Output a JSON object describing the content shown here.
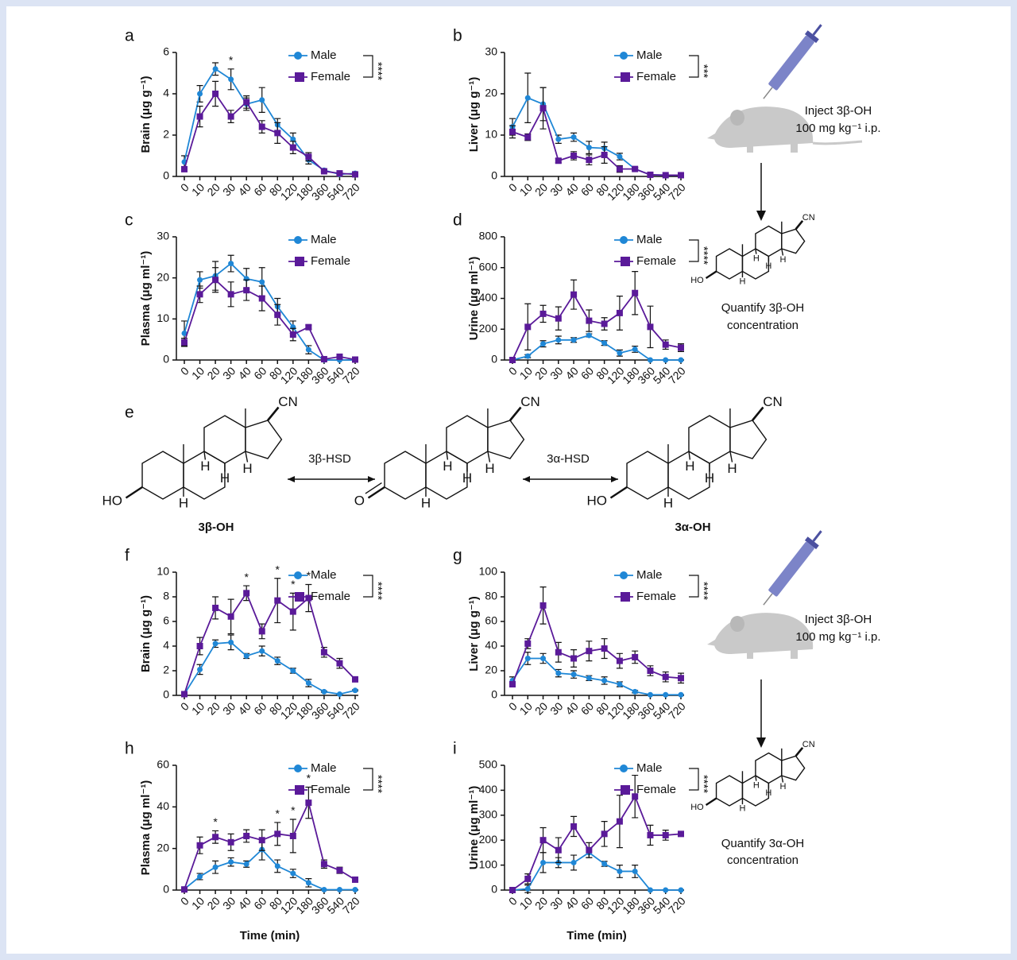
{
  "chart_data": [
    {
      "type": "line",
      "label": "a",
      "ylabel": "Brain (μg g⁻¹)",
      "categories": [
        "0",
        "10",
        "20",
        "30",
        "40",
        "60",
        "80",
        "120",
        "180",
        "360",
        "540",
        "720"
      ],
      "ylim": [
        0,
        6
      ],
      "yticks": [
        0,
        2,
        4,
        6
      ],
      "legend": "upper right",
      "significance": "****",
      "annotations": [
        {
          "x": "30",
          "text": "*"
        }
      ],
      "series": [
        {
          "name": "Male",
          "color": "#1f87d6",
          "marker": "circle",
          "values": [
            0.7,
            4.0,
            5.2,
            4.7,
            3.5,
            3.7,
            2.5,
            1.8,
            0.8,
            0.3,
            0.1,
            0.15
          ],
          "errors": [
            0.3,
            0.4,
            0.3,
            0.5,
            0.3,
            0.6,
            0.3,
            0.3,
            0.2,
            0.05,
            0.05,
            0.05
          ]
        },
        {
          "name": "Female",
          "color": "#5a1a99",
          "marker": "square",
          "values": [
            0.35,
            2.9,
            4.0,
            2.9,
            3.6,
            2.4,
            2.1,
            1.4,
            0.95,
            0.25,
            0.15,
            0.1
          ],
          "errors": [
            0.1,
            0.5,
            0.6,
            0.3,
            0.3,
            0.3,
            0.5,
            0.3,
            0.2,
            0.05,
            0.05,
            0.05
          ]
        }
      ]
    },
    {
      "type": "line",
      "label": "b",
      "ylabel": "Liver (μg g⁻¹)",
      "categories": [
        "0",
        "10",
        "20",
        "30",
        "40",
        "60",
        "80",
        "120",
        "180",
        "360",
        "540",
        "720"
      ],
      "ylim": [
        0,
        30
      ],
      "yticks": [
        0,
        10,
        20,
        30
      ],
      "legend": "upper right",
      "significance": "***",
      "annotations": [],
      "series": [
        {
          "name": "Male",
          "color": "#1f87d6",
          "marker": "circle",
          "values": [
            12,
            19,
            17.5,
            9,
            9.5,
            7,
            6.8,
            4.8,
            1.8,
            0.4,
            0.3,
            0.3
          ],
          "errors": [
            2,
            6,
            4,
            1,
            1,
            1.5,
            1.5,
            0.8,
            0.3,
            0.1,
            0.1,
            0.1
          ]
        },
        {
          "name": "Female",
          "color": "#5a1a99",
          "marker": "square",
          "values": [
            10.8,
            9.5,
            16.5,
            3.8,
            5,
            4,
            5.2,
            1.8,
            1.8,
            0.4,
            0.3,
            0.3
          ],
          "errors": [
            1.5,
            0.8,
            5,
            0.5,
            1,
            1.2,
            2,
            0.8,
            0.3,
            0.1,
            0.1,
            0.1
          ]
        }
      ]
    },
    {
      "type": "line",
      "label": "c",
      "ylabel": "Plasma (μg ml⁻¹)",
      "categories": [
        "0",
        "10",
        "20",
        "30",
        "40",
        "60",
        "80",
        "120",
        "180",
        "360",
        "540",
        "720"
      ],
      "ylim": [
        0,
        30
      ],
      "yticks": [
        0,
        10,
        20,
        30
      ],
      "legend": "upper right",
      "annotations": [],
      "series": [
        {
          "name": "Male",
          "color": "#1f87d6",
          "marker": "circle",
          "values": [
            6.5,
            19.5,
            20.5,
            23.5,
            19.8,
            19,
            13,
            8,
            2.5,
            0,
            0,
            0
          ],
          "errors": [
            3,
            2,
            3.5,
            2,
            2.5,
            3.5,
            2,
            1.5,
            1,
            0,
            0,
            0
          ]
        },
        {
          "name": "Female",
          "color": "#5a1a99",
          "marker": "square",
          "values": [
            4.3,
            16,
            19.5,
            16,
            17,
            15,
            11,
            6.2,
            8,
            0.2,
            0.8,
            0.1
          ],
          "errors": [
            1,
            2,
            3,
            3,
            2.5,
            3,
            2.5,
            1.5,
            0.5,
            0,
            0,
            0
          ]
        }
      ]
    },
    {
      "type": "line",
      "label": "d",
      "ylabel": "Urine (μg ml⁻¹)",
      "categories": [
        "0",
        "10",
        "20",
        "30",
        "40",
        "60",
        "80",
        "120",
        "180",
        "360",
        "540",
        "720"
      ],
      "ylim": [
        0,
        800
      ],
      "yticks": [
        0,
        200,
        400,
        600,
        800
      ],
      "legend": "upper right",
      "significance": "****",
      "annotations": [],
      "series": [
        {
          "name": "Male",
          "color": "#1f87d6",
          "marker": "circle",
          "values": [
            0,
            25,
            105,
            130,
            130,
            160,
            110,
            45,
            70,
            0,
            0,
            0
          ],
          "errors": [
            0,
            10,
            20,
            25,
            15,
            10,
            15,
            20,
            20,
            0,
            0,
            0
          ]
        },
        {
          "name": "Female",
          "color": "#5a1a99",
          "marker": "square",
          "values": [
            0,
            215,
            300,
            270,
            425,
            255,
            235,
            305,
            435,
            215,
            100,
            80
          ],
          "errors": [
            0,
            150,
            55,
            75,
            95,
            70,
            40,
            110,
            140,
            135,
            30,
            25
          ]
        }
      ]
    },
    {
      "type": "line",
      "label": "f",
      "ylabel": "Brain (μg g⁻¹)",
      "categories": [
        "0",
        "10",
        "20",
        "30",
        "40",
        "60",
        "80",
        "120",
        "180",
        "360",
        "540",
        "720"
      ],
      "ylim": [
        0,
        10
      ],
      "yticks": [
        0,
        2,
        4,
        6,
        8,
        10
      ],
      "legend": "upper right",
      "significance": "****",
      "annotations": [
        {
          "x": "40",
          "text": "*"
        },
        {
          "x": "80",
          "text": "*"
        },
        {
          "x": "120",
          "text": "*"
        },
        {
          "x": "180",
          "text": "*"
        }
      ],
      "series": [
        {
          "name": "Male",
          "color": "#1f87d6",
          "marker": "circle",
          "values": [
            0.1,
            2.1,
            4.2,
            4.3,
            3.2,
            3.6,
            2.8,
            2.0,
            1.0,
            0.3,
            0.1,
            0.4
          ],
          "errors": [
            0.05,
            0.4,
            0.3,
            0.6,
            0.2,
            0.4,
            0.3,
            0.2,
            0.3,
            0.05,
            0.05,
            0.05
          ]
        },
        {
          "name": "Female",
          "color": "#5a1a99",
          "marker": "square",
          "values": [
            0.1,
            4.0,
            7.1,
            6.4,
            8.3,
            5.2,
            7.7,
            6.8,
            7.9,
            3.5,
            2.6,
            1.3
          ],
          "errors": [
            0.05,
            0.7,
            0.9,
            1.4,
            0.6,
            0.6,
            1.8,
            1.5,
            1.1,
            0.4,
            0.4,
            0.2
          ]
        }
      ]
    },
    {
      "type": "line",
      "label": "g",
      "ylabel": "Liver (μg g⁻¹)",
      "categories": [
        "0",
        "10",
        "20",
        "30",
        "40",
        "60",
        "80",
        "120",
        "180",
        "360",
        "540",
        "720"
      ],
      "ylim": [
        0,
        100
      ],
      "yticks": [
        0,
        20,
        40,
        60,
        80,
        100
      ],
      "legend": "upper right",
      "significance": "****",
      "annotations": [],
      "series": [
        {
          "name": "Male",
          "color": "#1f87d6",
          "marker": "circle",
          "values": [
            12,
            30,
            30,
            18,
            17,
            14,
            12,
            9,
            3,
            0.5,
            0.5,
            0.5
          ],
          "errors": [
            3,
            5,
            4,
            3,
            3,
            2,
            3,
            2,
            1,
            0,
            0,
            0
          ]
        },
        {
          "name": "Female",
          "color": "#5a1a99",
          "marker": "square",
          "values": [
            9,
            42,
            73,
            35,
            30,
            36,
            38,
            28,
            31,
            20,
            15,
            14
          ],
          "errors": [
            2,
            4,
            15,
            8,
            7,
            8,
            8,
            6,
            5,
            4,
            4,
            4
          ]
        }
      ]
    },
    {
      "type": "line",
      "label": "h",
      "ylabel": "Plasma (μg ml⁻¹)",
      "xlabel": "Time (min)",
      "categories": [
        "0",
        "10",
        "20",
        "30",
        "40",
        "60",
        "80",
        "120",
        "180",
        "360",
        "540",
        "720"
      ],
      "ylim": [
        0,
        60
      ],
      "yticks": [
        0,
        20,
        40,
        60
      ],
      "legend": "upper right",
      "significance": "****",
      "annotations": [
        {
          "x": "20",
          "text": "*"
        },
        {
          "x": "80",
          "text": "*"
        },
        {
          "x": "120",
          "text": "*"
        },
        {
          "x": "180",
          "text": "*"
        }
      ],
      "series": [
        {
          "name": "Male",
          "color": "#1f87d6",
          "marker": "circle",
          "values": [
            0.5,
            6.5,
            11,
            13.5,
            12.5,
            19.5,
            11.5,
            8,
            3.5,
            0.2,
            0.2,
            0.2
          ],
          "errors": [
            0.3,
            1.5,
            3,
            2,
            1.5,
            5,
            3,
            2,
            2,
            0,
            0,
            0
          ]
        },
        {
          "name": "Female",
          "color": "#5a1a99",
          "marker": "square",
          "values": [
            0.3,
            21.5,
            25.5,
            23,
            26,
            24,
            27,
            26,
            42,
            12.5,
            9.5,
            5
          ],
          "errors": [
            0.2,
            4,
            3,
            4,
            3,
            5,
            5.5,
            8,
            7.5,
            2,
            1.5,
            1
          ]
        }
      ]
    },
    {
      "type": "line",
      "label": "i",
      "ylabel": "Urine (μg ml⁻¹)",
      "xlabel": "Time (min)",
      "categories": [
        "0",
        "10",
        "20",
        "30",
        "40",
        "60",
        "80",
        "120",
        "180",
        "360",
        "540",
        "720"
      ],
      "ylim": [
        0,
        500
      ],
      "yticks": [
        0,
        100,
        200,
        300,
        400,
        500
      ],
      "legend": "upper right",
      "significance": "****",
      "annotations": [],
      "series": [
        {
          "name": "Male",
          "color": "#1f87d6",
          "marker": "circle",
          "values": [
            0,
            5,
            110,
            110,
            110,
            150,
            105,
            75,
            75,
            0,
            0,
            0
          ],
          "errors": [
            0,
            15,
            40,
            20,
            30,
            20,
            10,
            25,
            25,
            0,
            0,
            0
          ]
        },
        {
          "name": "Female",
          "color": "#5a1a99",
          "marker": "square",
          "values": [
            0,
            45,
            200,
            160,
            255,
            160,
            225,
            275,
            375,
            220,
            220,
            225
          ],
          "errors": [
            0,
            20,
            50,
            50,
            40,
            30,
            50,
            105,
            85,
            40,
            20,
            0
          ]
        }
      ]
    }
  ],
  "schematics": [
    {
      "inject": [
        "Inject 3β-OH",
        "100 mg kg⁻¹ i.p."
      ],
      "quantify": [
        "Quantify 3β-OH",
        "concentration"
      ],
      "structure": {
        "top": "CN",
        "substituent": "HO",
        "hydrogens": [
          "H",
          "H",
          "H",
          "H"
        ]
      }
    },
    {
      "inject": [
        "Inject 3β-OH",
        "100 mg kg⁻¹ i.p."
      ],
      "quantify": [
        "Quantify 3α-OH",
        "concentration"
      ],
      "structure": {
        "top": "CN",
        "substituent": "HO",
        "hydrogens": [
          "H",
          "H",
          "H",
          "H"
        ]
      }
    }
  ],
  "scheme": {
    "label": "e",
    "enzymes": [
      "3β-HSD",
      "3α-HSD"
    ],
    "names": [
      "3β-OH",
      "3α-OH"
    ],
    "structures": [
      {
        "top": "CN",
        "substituent": "HO",
        "hydrogens": [
          "H",
          "H",
          "H",
          "H"
        ]
      },
      {
        "top": "CN",
        "substituent": "O",
        "hydrogens": [
          "H",
          "H",
          "H",
          "H"
        ]
      },
      {
        "top": "CN",
        "substituent": "HO",
        "hydrogens": [
          "H",
          "H",
          "H",
          "H"
        ]
      }
    ]
  }
}
